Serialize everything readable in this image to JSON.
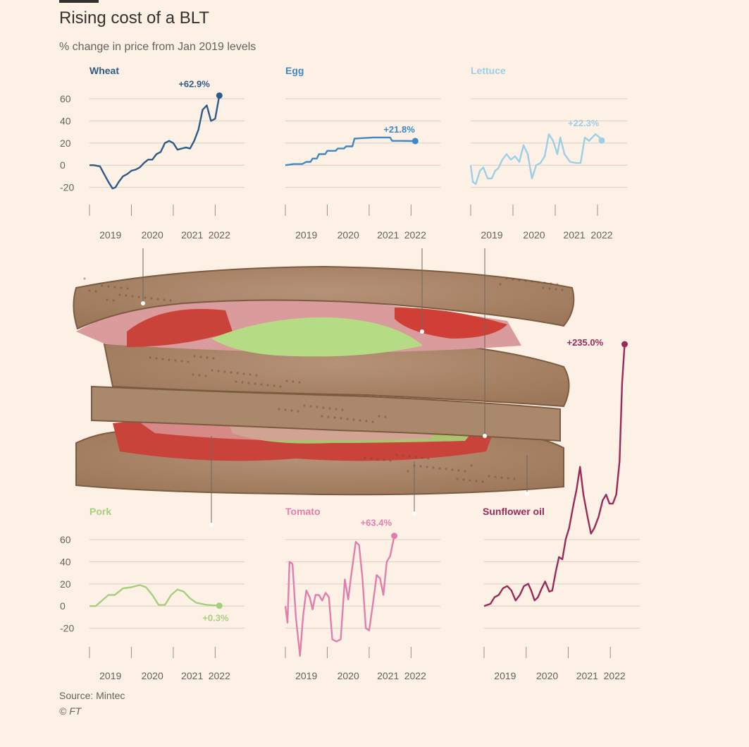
{
  "header": {
    "title": "Rising cost of a BLT",
    "subtitle": "% change in price from Jan 2019 levels"
  },
  "footer": {
    "source": "Source: Mintec",
    "credit": "© FT"
  },
  "colors": {
    "background": "#fdf1e6",
    "wheat": "#2e5a87",
    "egg": "#3f88c5",
    "lettuce": "#9ccfe6",
    "pork": "#a6cf7d",
    "tomato": "#e07fae",
    "sunflower_oil": "#9a2a5a",
    "grid": "#d9cfc6"
  },
  "chart_data": [
    {
      "type": "line",
      "name": "Wheat",
      "color": "#2e5a87",
      "end_label": "+62.9%",
      "yticks": [
        "60",
        "40",
        "20",
        "0",
        "-20"
      ],
      "ylim": [
        -30,
        70
      ],
      "xticks": [
        "2019",
        "2020",
        "2021",
        "2022"
      ],
      "xlim": [
        2018.5,
        2022.2
      ],
      "points": [
        [
          2018.5,
          0
        ],
        [
          2018.6,
          0
        ],
        [
          2018.75,
          -1
        ],
        [
          2018.85,
          -8
        ],
        [
          2018.95,
          -15
        ],
        [
          2019.05,
          -21
        ],
        [
          2019.12,
          -20
        ],
        [
          2019.2,
          -15
        ],
        [
          2019.3,
          -10
        ],
        [
          2019.4,
          -8
        ],
        [
          2019.5,
          -5
        ],
        [
          2019.6,
          -4
        ],
        [
          2019.7,
          -2
        ],
        [
          2019.8,
          2
        ],
        [
          2019.9,
          5
        ],
        [
          2020.0,
          5
        ],
        [
          2020.1,
          10
        ],
        [
          2020.2,
          12
        ],
        [
          2020.3,
          20
        ],
        [
          2020.4,
          22
        ],
        [
          2020.5,
          20
        ],
        [
          2020.6,
          14
        ],
        [
          2020.7,
          15
        ],
        [
          2020.8,
          16
        ],
        [
          2020.9,
          15
        ],
        [
          2021.0,
          22
        ],
        [
          2021.1,
          32
        ],
        [
          2021.2,
          50
        ],
        [
          2021.3,
          54
        ],
        [
          2021.4,
          40
        ],
        [
          2021.5,
          42
        ],
        [
          2021.6,
          62.9
        ]
      ]
    },
    {
      "type": "line",
      "name": "Egg",
      "color": "#3f88c5",
      "end_label": "+21.8%",
      "yticks": [
        "60",
        "40",
        "20",
        "0",
        "-20"
      ],
      "ylim": [
        -30,
        70
      ],
      "xticks": [
        "2019",
        "2020",
        "2021",
        "2022"
      ],
      "xlim": [
        2018.5,
        2022.2
      ],
      "points": [
        [
          2018.5,
          0
        ],
        [
          2018.7,
          1
        ],
        [
          2018.9,
          1
        ],
        [
          2019.0,
          3
        ],
        [
          2019.1,
          3
        ],
        [
          2019.15,
          6
        ],
        [
          2019.25,
          6
        ],
        [
          2019.3,
          10
        ],
        [
          2019.45,
          10
        ],
        [
          2019.5,
          13
        ],
        [
          2019.7,
          13
        ],
        [
          2019.75,
          15
        ],
        [
          2019.9,
          15
        ],
        [
          2019.95,
          17
        ],
        [
          2020.1,
          17
        ],
        [
          2020.15,
          24
        ],
        [
          2020.6,
          25
        ],
        [
          2021.0,
          25
        ],
        [
          2021.05,
          22
        ],
        [
          2021.3,
          22
        ],
        [
          2021.6,
          21.8
        ]
      ]
    },
    {
      "type": "line",
      "name": "Lettuce",
      "color": "#9ccfe6",
      "end_label": "+22.3%",
      "yticks": [
        "60",
        "40",
        "20",
        "0",
        "-20"
      ],
      "ylim": [
        -30,
        70
      ],
      "xticks": [
        "2019",
        "2020",
        "2021",
        "2022"
      ],
      "xlim": [
        2018.5,
        2022.2
      ],
      "points": [
        [
          2018.5,
          0
        ],
        [
          2018.55,
          -15
        ],
        [
          2018.62,
          -17
        ],
        [
          2018.72,
          -5
        ],
        [
          2018.8,
          -2
        ],
        [
          2018.9,
          -12
        ],
        [
          2019.0,
          -12
        ],
        [
          2019.08,
          -5
        ],
        [
          2019.15,
          -3
        ],
        [
          2019.25,
          5
        ],
        [
          2019.35,
          10
        ],
        [
          2019.45,
          5
        ],
        [
          2019.55,
          8
        ],
        [
          2019.65,
          3
        ],
        [
          2019.75,
          18
        ],
        [
          2019.85,
          10
        ],
        [
          2019.95,
          -12
        ],
        [
          2020.05,
          0
        ],
        [
          2020.15,
          2
        ],
        [
          2020.25,
          8
        ],
        [
          2020.35,
          28
        ],
        [
          2020.45,
          22
        ],
        [
          2020.55,
          10
        ],
        [
          2020.62,
          25
        ],
        [
          2020.72,
          10
        ],
        [
          2020.85,
          3
        ],
        [
          2021.0,
          2
        ],
        [
          2021.1,
          2
        ],
        [
          2021.2,
          25
        ],
        [
          2021.3,
          22
        ],
        [
          2021.45,
          28
        ],
        [
          2021.55,
          25
        ],
        [
          2021.6,
          22.3
        ]
      ]
    },
    {
      "type": "line",
      "name": "Pork",
      "color": "#a6cf7d",
      "end_label": "+0.3%",
      "yticks": [
        "60",
        "40",
        "20",
        "0",
        "-20"
      ],
      "ylim": [
        -30,
        70
      ],
      "xticks": [
        "2019",
        "2020",
        "2021",
        "2022"
      ],
      "xlim": [
        2018.5,
        2022.2
      ],
      "points": [
        [
          2018.5,
          0
        ],
        [
          2018.65,
          0
        ],
        [
          2018.8,
          5
        ],
        [
          2018.95,
          10
        ],
        [
          2019.1,
          10
        ],
        [
          2019.3,
          16
        ],
        [
          2019.5,
          17
        ],
        [
          2019.7,
          19
        ],
        [
          2019.85,
          17
        ],
        [
          2020.0,
          10
        ],
        [
          2020.15,
          1
        ],
        [
          2020.3,
          1
        ],
        [
          2020.45,
          10
        ],
        [
          2020.6,
          15
        ],
        [
          2020.75,
          13
        ],
        [
          2020.9,
          7
        ],
        [
          2021.05,
          3
        ],
        [
          2021.3,
          1
        ],
        [
          2021.6,
          0.3
        ]
      ]
    },
    {
      "type": "line",
      "name": "Tomato",
      "color": "#e07fae",
      "end_label": "+63.4%",
      "yticks": [
        "60",
        "40",
        "20",
        "0",
        "-20"
      ],
      "ylim": [
        -30,
        70
      ],
      "xticks": [
        "2019",
        "2020",
        "2021",
        "2022"
      ],
      "xlim": [
        2018.5,
        2022.2
      ],
      "points": [
        [
          2018.5,
          0
        ],
        [
          2018.55,
          -15
        ],
        [
          2018.6,
          40
        ],
        [
          2018.67,
          38
        ],
        [
          2018.75,
          -10
        ],
        [
          2018.85,
          -45
        ],
        [
          2018.92,
          -10
        ],
        [
          2019.0,
          14
        ],
        [
          2019.08,
          8
        ],
        [
          2019.15,
          -3
        ],
        [
          2019.22,
          10
        ],
        [
          2019.3,
          10
        ],
        [
          2019.38,
          5
        ],
        [
          2019.46,
          12
        ],
        [
          2019.54,
          8
        ],
        [
          2019.62,
          -30
        ],
        [
          2019.72,
          -32
        ],
        [
          2019.82,
          -30
        ],
        [
          2019.92,
          24
        ],
        [
          2020.0,
          6
        ],
        [
          2020.08,
          30
        ],
        [
          2020.18,
          58
        ],
        [
          2020.26,
          55
        ],
        [
          2020.34,
          25
        ],
        [
          2020.42,
          -20
        ],
        [
          2020.5,
          -22
        ],
        [
          2020.6,
          5
        ],
        [
          2020.68,
          28
        ],
        [
          2020.76,
          25
        ],
        [
          2020.84,
          10
        ],
        [
          2020.92,
          40
        ],
        [
          2021.0,
          45
        ],
        [
          2021.1,
          63.4
        ]
      ]
    },
    {
      "type": "line",
      "name": "Sunflower oil",
      "color": "#9a2a5a",
      "end_label": "+235.0%",
      "xticks": [
        "2019",
        "2020",
        "2021",
        "2022"
      ],
      "xlim": [
        2018.5,
        2022.2
      ],
      "ylim": [
        -30,
        300
      ],
      "points": [
        [
          2018.5,
          0
        ],
        [
          2018.65,
          2
        ],
        [
          2018.75,
          8
        ],
        [
          2018.85,
          10
        ],
        [
          2018.95,
          16
        ],
        [
          2019.05,
          18
        ],
        [
          2019.15,
          14
        ],
        [
          2019.25,
          5
        ],
        [
          2019.35,
          10
        ],
        [
          2019.45,
          18
        ],
        [
          2019.55,
          20
        ],
        [
          2019.62,
          14
        ],
        [
          2019.7,
          5
        ],
        [
          2019.78,
          8
        ],
        [
          2019.86,
          15
        ],
        [
          2019.95,
          22
        ],
        [
          2020.05,
          13
        ],
        [
          2020.12,
          14
        ],
        [
          2020.2,
          30
        ],
        [
          2020.28,
          44
        ],
        [
          2020.36,
          42
        ],
        [
          2020.44,
          60
        ],
        [
          2020.52,
          70
        ],
        [
          2020.62,
          90
        ],
        [
          2020.7,
          105
        ],
        [
          2020.78,
          125
        ],
        [
          2020.86,
          100
        ],
        [
          2020.96,
          80
        ],
        [
          2021.04,
          65
        ],
        [
          2021.12,
          70
        ],
        [
          2021.22,
          80
        ],
        [
          2021.32,
          95
        ],
        [
          2021.4,
          100
        ],
        [
          2021.48,
          92
        ],
        [
          2021.56,
          92
        ],
        [
          2021.64,
          100
        ],
        [
          2021.72,
          130
        ],
        [
          2021.78,
          200
        ],
        [
          2021.84,
          235
        ]
      ]
    }
  ]
}
